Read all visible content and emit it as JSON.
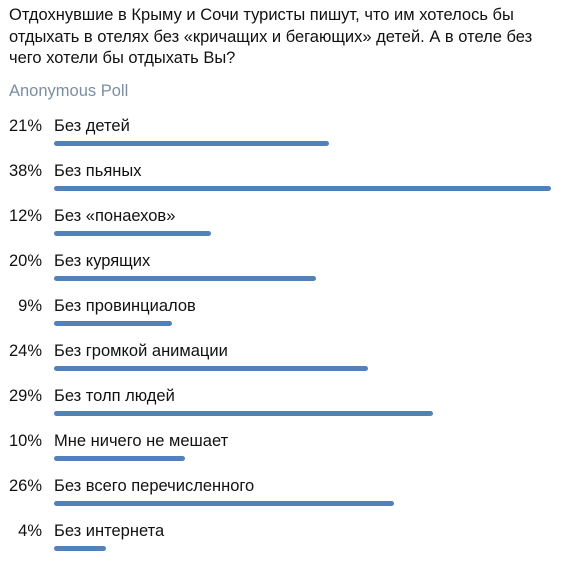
{
  "poll": {
    "question": "Отдохнувшие в Крыму и Сочи туристы пишут, что им хотелось бы отдыхать в отелях без «кричащих и бегающих» детей. А в отеле без чего хотели бы отдыхать Вы?",
    "type_label": "Anonymous Poll",
    "bar_color": "#5181b8",
    "options": [
      {
        "percent_label": "21%",
        "label": "Без детей",
        "percent": 21
      },
      {
        "percent_label": "38%",
        "label": "Без пьяных",
        "percent": 38
      },
      {
        "percent_label": "12%",
        "label": "Без «понаехов»",
        "percent": 12
      },
      {
        "percent_label": "20%",
        "label": "Без курящих",
        "percent": 20
      },
      {
        "percent_label": "9%",
        "label": "Без провинциалов",
        "percent": 9
      },
      {
        "percent_label": "24%",
        "label": "Без громкой анимации",
        "percent": 24
      },
      {
        "percent_label": "29%",
        "label": "Без толп людей",
        "percent": 29
      },
      {
        "percent_label": "10%",
        "label": "Мне ничего не мешает",
        "percent": 10
      },
      {
        "percent_label": "26%",
        "label": "Без всего перечисленного",
        "percent": 26
      },
      {
        "percent_label": "4%",
        "label": "Без интернета",
        "percent": 4
      }
    ]
  }
}
